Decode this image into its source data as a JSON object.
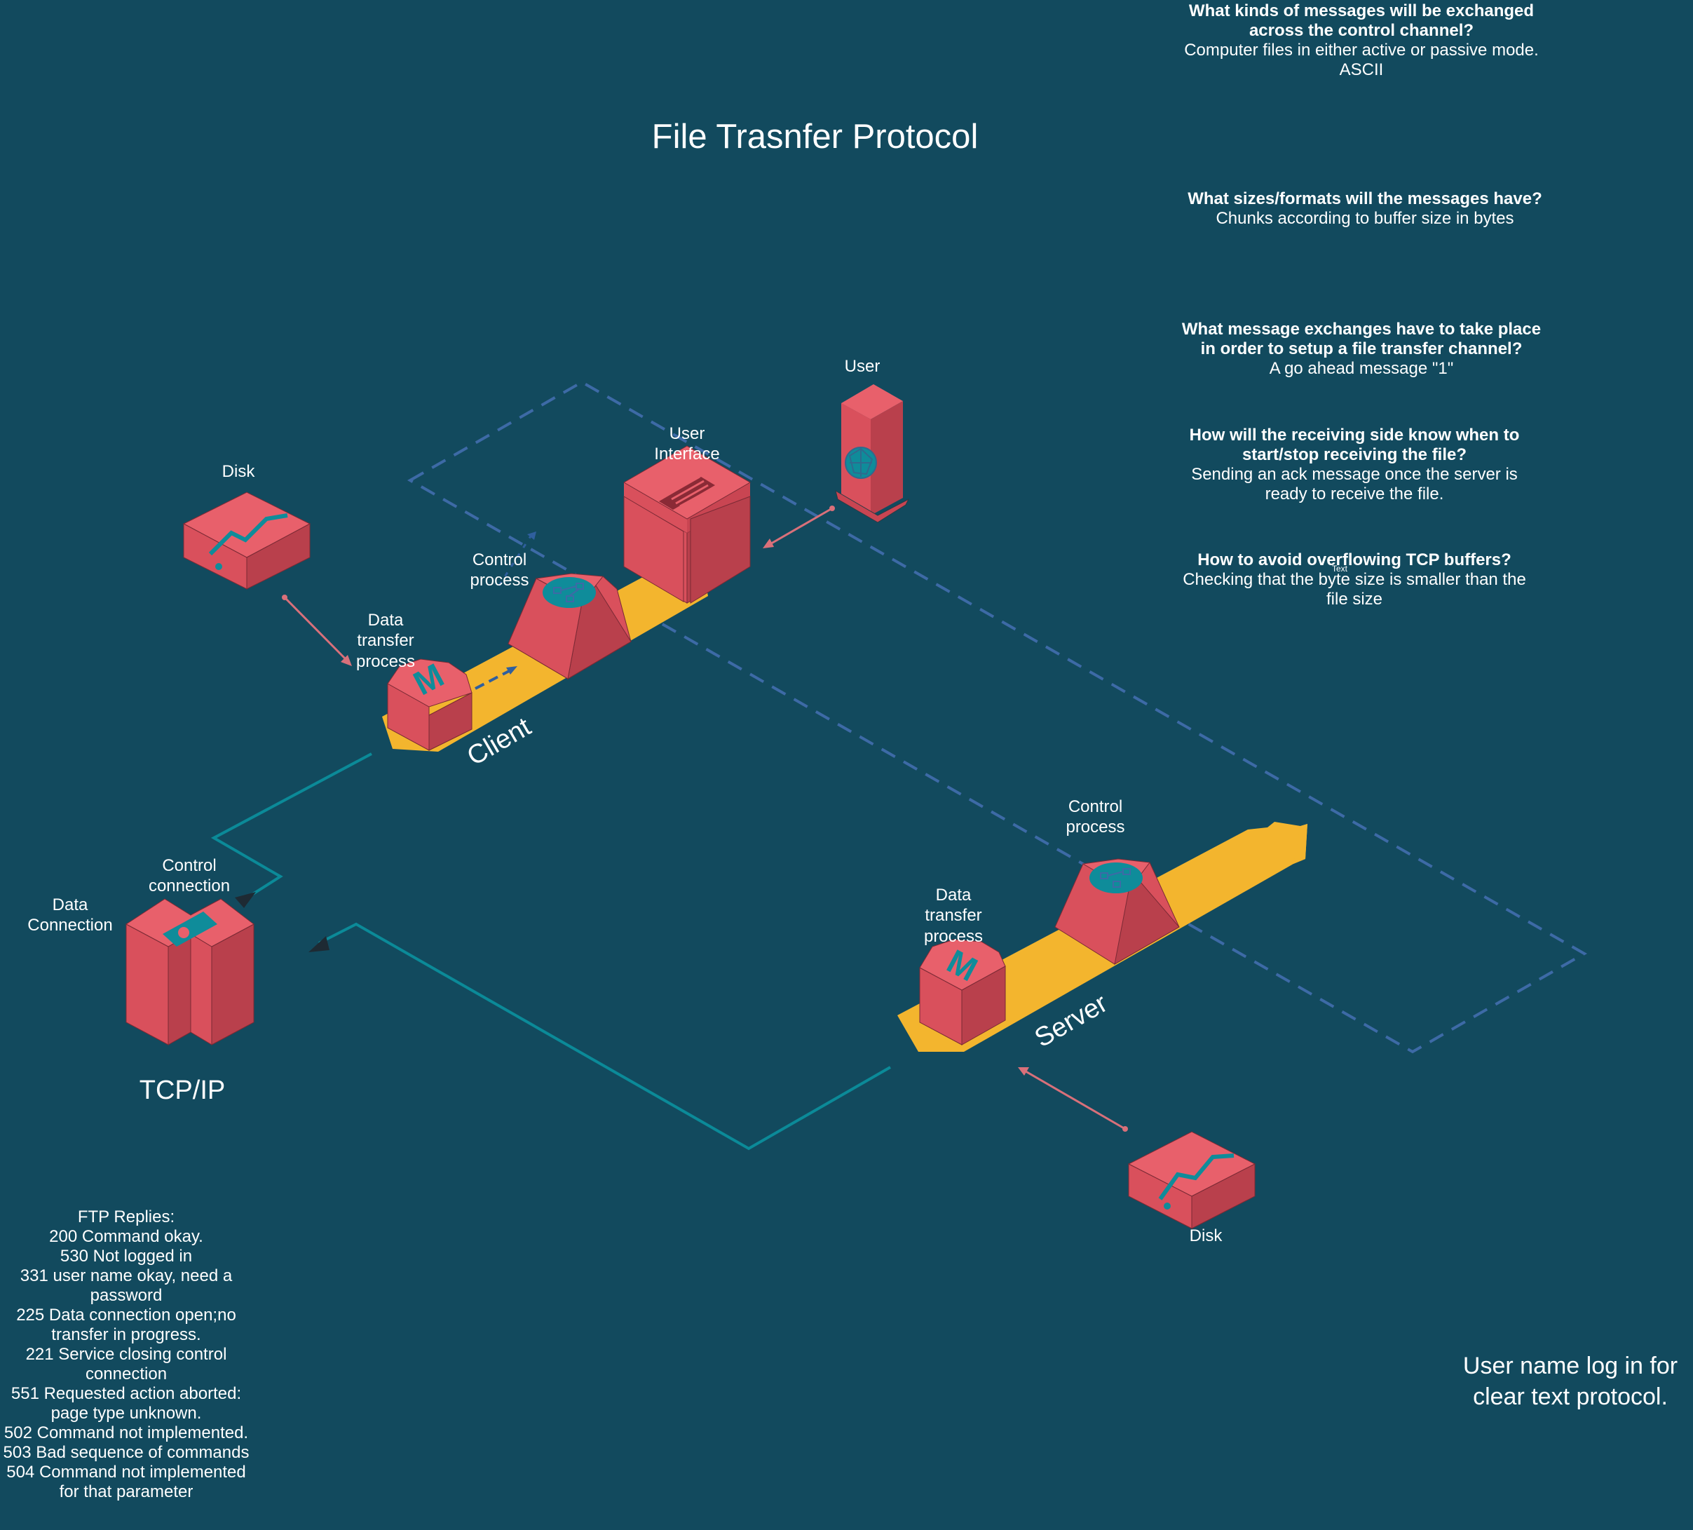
{
  "title": "File Trasnfer Protocol",
  "colors": {
    "background": "#124a5e",
    "block_top": "#e8606b",
    "block_left": "#d9505c",
    "block_right": "#b9404c",
    "platform": "#f3b52e",
    "teal_line": "#0b8a98",
    "dashed_line": "#3d6aa6",
    "pink_arrow": "#d9707a",
    "icon_teal": "#0f8c9a"
  },
  "labels": {
    "user": "User",
    "user_interface": [
      "User",
      "Interface"
    ],
    "disk_client": "Disk",
    "disk_server": "Disk",
    "control_process_client": [
      "Control",
      "process"
    ],
    "data_transfer_client": [
      "Data",
      "transfer",
      "process"
    ],
    "client": "Client",
    "server": "Server",
    "control_process_server": [
      "Control",
      "process"
    ],
    "data_transfer_server": [
      "Data",
      "transfer",
      "process"
    ],
    "control_connection": [
      "Control",
      "connection"
    ],
    "data_connection": [
      "Data",
      "Connection"
    ],
    "tcpip": "TCP/IP",
    "tiny_text": "Text"
  },
  "qa": [
    {
      "q": [
        "What kinds of messages will be exchanged",
        "across the control channel?"
      ],
      "a": [
        "Computer files in either active or passive mode.",
        "ASCII"
      ]
    },
    {
      "q": [
        "What sizes/formats will the messages have?"
      ],
      "a": [
        "Chunks according to buffer size in bytes"
      ]
    },
    {
      "q": [
        "What message exchanges have to take place",
        "in order to setup a file transfer channel?"
      ],
      "a": [
        "A go ahead message \"1\""
      ]
    },
    {
      "q": [
        "How will the receiving side know when to",
        "start/stop receiving the file?"
      ],
      "a": [
        "Sending an ack message once the server is",
        "ready to receive the file."
      ]
    },
    {
      "q": [
        "How to avoid overflowing TCP buffers?"
      ],
      "a": [
        "Checking that the byte size is smaller than the",
        "file size"
      ]
    }
  ],
  "ftp_replies": [
    "FTP Replies:",
    "200 Command okay.",
    "530 Not logged in",
    "331 user name okay, need a",
    "password",
    "225 Data connection open;no",
    "transfer in progress.",
    "221 Service closing control",
    "connection",
    "551 Requested action aborted:",
    "page type unknown.",
    "502 Command not implemented.",
    "503 Bad sequence of commands",
    "504 Command not implemented",
    "for that parameter"
  ],
  "note": [
    "User name log in for",
    "clear text protocol."
  ],
  "icons": {
    "user_device": "globe-icon",
    "user_interface": "list-icon",
    "control_process": "network-icon",
    "data_transfer_process": "m-letter-icon",
    "disk": "disk-icon",
    "tcpip": "gear-document-icon"
  }
}
